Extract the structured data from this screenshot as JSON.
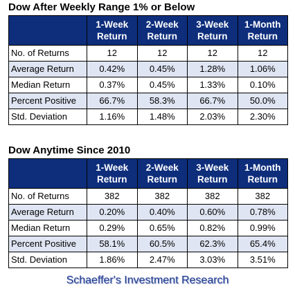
{
  "chart_data": [
    {
      "type": "table",
      "title": "Dow After Weekly Range 1% or Below",
      "columns": [
        "1-Week\nReturn",
        "2-Week\nReturn",
        "3-Week\nReturn",
        "1-Month\nReturn"
      ],
      "rows": [
        {
          "label": "No. of Returns",
          "values": [
            "12",
            "12",
            "12",
            "12"
          ]
        },
        {
          "label": "Average Return",
          "values": [
            "0.42%",
            "0.45%",
            "1.28%",
            "1.06%"
          ]
        },
        {
          "label": "Median Return",
          "values": [
            "0.37%",
            "0.45%",
            "1.33%",
            "0.10%"
          ]
        },
        {
          "label": "Percent Positive",
          "values": [
            "66.7%",
            "58.3%",
            "66.7%",
            "50.0%"
          ]
        },
        {
          "label": "Std. Deviation",
          "values": [
            "1.16%",
            "1.48%",
            "2.03%",
            "2.30%"
          ]
        }
      ]
    },
    {
      "type": "table",
      "title": "Dow Anytime Since 2010",
      "columns": [
        "1-Week\nReturn",
        "2-Week\nReturn",
        "3-Week\nReturn",
        "1-Month\nReturn"
      ],
      "rows": [
        {
          "label": "No. of Returns",
          "values": [
            "382",
            "382",
            "382",
            "382"
          ]
        },
        {
          "label": "Average Return",
          "values": [
            "0.20%",
            "0.40%",
            "0.60%",
            "0.78%"
          ]
        },
        {
          "label": "Median Return",
          "values": [
            "0.29%",
            "0.65%",
            "0.82%",
            "0.99%"
          ]
        },
        {
          "label": "Percent Positive",
          "values": [
            "58.1%",
            "60.5%",
            "62.3%",
            "65.4%"
          ]
        },
        {
          "label": "Std. Deviation",
          "values": [
            "1.86%",
            "2.47%",
            "3.03%",
            "3.51%"
          ]
        }
      ]
    }
  ],
  "footer": "Schaeffer's Investment Research",
  "colors": {
    "header_bg": "#0e2e7c",
    "shaded_row": "#dfe5f2",
    "footer_text": "#1f3a93"
  }
}
